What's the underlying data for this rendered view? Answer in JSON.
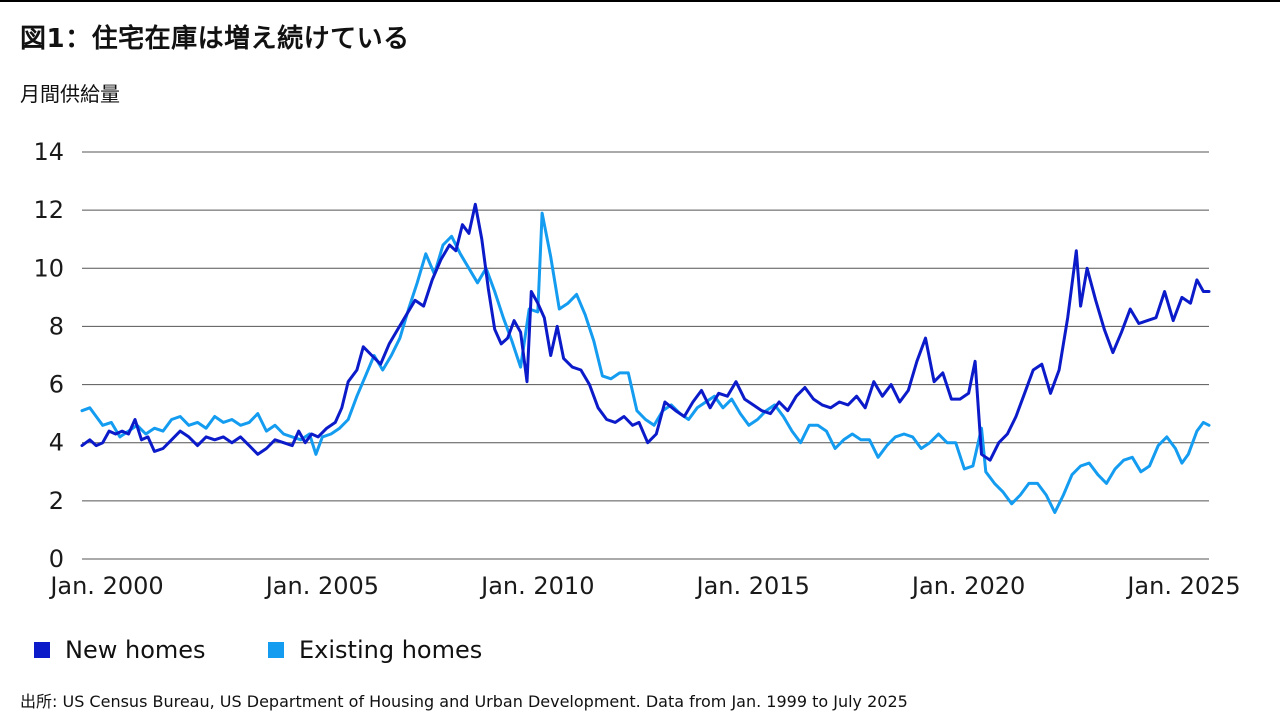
{
  "title": "図1：住宅在庫は増え続けている",
  "source": "出所: US Census Bureau, US Department of Housing and Urban Development. Data from Jan. 1999 to July 2025",
  "colors": {
    "new_homes": "#0c1bc9",
    "existing_homes": "#149cf0",
    "grid": "#555555"
  },
  "chart_data": {
    "type": "line",
    "title": "図1：住宅在庫は増え続けている",
    "xlabel": "",
    "ylabel": "月間供給量",
    "ylim": [
      0,
      14
    ],
    "xlim": [
      1999.42,
      2025.58
    ],
    "y_ticks": [
      0,
      2,
      4,
      6,
      8,
      10,
      12,
      14
    ],
    "x_ticks": [
      {
        "label": "Jan. 2000",
        "value": 2000
      },
      {
        "label": "Jan. 2005",
        "value": 2005
      },
      {
        "label": "Jan. 2010",
        "value": 2010
      },
      {
        "label": "Jan. 2015",
        "value": 2015
      },
      {
        "label": "Jan. 2020",
        "value": 2020
      },
      {
        "label": "Jan. 2025",
        "value": 2025
      }
    ],
    "grid": true,
    "legend_position": "bottom-left",
    "series": [
      {
        "name": "New homes",
        "color": "#0c1bc9",
        "points": [
          [
            1999.42,
            3.9
          ],
          [
            1999.6,
            4.1
          ],
          [
            1999.75,
            3.9
          ],
          [
            1999.9,
            4.0
          ],
          [
            2000.05,
            4.4
          ],
          [
            2000.2,
            4.3
          ],
          [
            2000.35,
            4.4
          ],
          [
            2000.5,
            4.3
          ],
          [
            2000.65,
            4.8
          ],
          [
            2000.8,
            4.1
          ],
          [
            2000.95,
            4.2
          ],
          [
            2001.1,
            3.7
          ],
          [
            2001.3,
            3.8
          ],
          [
            2001.5,
            4.1
          ],
          [
            2001.7,
            4.4
          ],
          [
            2001.9,
            4.2
          ],
          [
            2002.1,
            3.9
          ],
          [
            2002.3,
            4.2
          ],
          [
            2002.5,
            4.1
          ],
          [
            2002.7,
            4.2
          ],
          [
            2002.9,
            4.0
          ],
          [
            2003.1,
            4.2
          ],
          [
            2003.3,
            3.9
          ],
          [
            2003.5,
            3.6
          ],
          [
            2003.7,
            3.8
          ],
          [
            2003.9,
            4.1
          ],
          [
            2004.1,
            4.0
          ],
          [
            2004.3,
            3.9
          ],
          [
            2004.45,
            4.4
          ],
          [
            2004.6,
            4.0
          ],
          [
            2004.75,
            4.3
          ],
          [
            2004.9,
            4.2
          ],
          [
            2005.1,
            4.5
          ],
          [
            2005.3,
            4.7
          ],
          [
            2005.45,
            5.2
          ],
          [
            2005.6,
            6.1
          ],
          [
            2005.8,
            6.5
          ],
          [
            2005.95,
            7.3
          ],
          [
            2006.15,
            7.0
          ],
          [
            2006.35,
            6.7
          ],
          [
            2006.55,
            7.4
          ],
          [
            2006.75,
            7.9
          ],
          [
            2006.95,
            8.4
          ],
          [
            2007.15,
            8.9
          ],
          [
            2007.35,
            8.7
          ],
          [
            2007.55,
            9.6
          ],
          [
            2007.75,
            10.3
          ],
          [
            2007.95,
            10.8
          ],
          [
            2008.1,
            10.6
          ],
          [
            2008.25,
            11.5
          ],
          [
            2008.4,
            11.2
          ],
          [
            2008.55,
            12.2
          ],
          [
            2008.7,
            11.0
          ],
          [
            2008.85,
            9.3
          ],
          [
            2009.0,
            7.9
          ],
          [
            2009.15,
            7.4
          ],
          [
            2009.3,
            7.6
          ],
          [
            2009.45,
            8.2
          ],
          [
            2009.6,
            7.8
          ],
          [
            2009.75,
            6.1
          ],
          [
            2009.85,
            9.2
          ],
          [
            2010.0,
            8.8
          ],
          [
            2010.15,
            8.3
          ],
          [
            2010.3,
            7.0
          ],
          [
            2010.45,
            8.0
          ],
          [
            2010.6,
            6.9
          ],
          [
            2010.8,
            6.6
          ],
          [
            2011.0,
            6.5
          ],
          [
            2011.2,
            6.0
          ],
          [
            2011.4,
            5.2
          ],
          [
            2011.6,
            4.8
          ],
          [
            2011.8,
            4.7
          ],
          [
            2012.0,
            4.9
          ],
          [
            2012.2,
            4.6
          ],
          [
            2012.35,
            4.7
          ],
          [
            2012.55,
            4.0
          ],
          [
            2012.75,
            4.3
          ],
          [
            2012.95,
            5.4
          ],
          [
            2013.2,
            5.1
          ],
          [
            2013.4,
            4.9
          ],
          [
            2013.6,
            5.4
          ],
          [
            2013.8,
            5.8
          ],
          [
            2014.0,
            5.2
          ],
          [
            2014.2,
            5.7
          ],
          [
            2014.4,
            5.6
          ],
          [
            2014.6,
            6.1
          ],
          [
            2014.8,
            5.5
          ],
          [
            2015.0,
            5.3
          ],
          [
            2015.2,
            5.1
          ],
          [
            2015.4,
            5.0
          ],
          [
            2015.6,
            5.4
          ],
          [
            2015.8,
            5.1
          ],
          [
            2016.0,
            5.6
          ],
          [
            2016.2,
            5.9
          ],
          [
            2016.4,
            5.5
          ],
          [
            2016.6,
            5.3
          ],
          [
            2016.8,
            5.2
          ],
          [
            2017.0,
            5.4
          ],
          [
            2017.2,
            5.3
          ],
          [
            2017.4,
            5.6
          ],
          [
            2017.6,
            5.2
          ],
          [
            2017.8,
            6.1
          ],
          [
            2018.0,
            5.6
          ],
          [
            2018.2,
            6.0
          ],
          [
            2018.4,
            5.4
          ],
          [
            2018.6,
            5.8
          ],
          [
            2018.8,
            6.8
          ],
          [
            2019.0,
            7.6
          ],
          [
            2019.2,
            6.1
          ],
          [
            2019.4,
            6.4
          ],
          [
            2019.6,
            5.5
          ],
          [
            2019.8,
            5.5
          ],
          [
            2020.0,
            5.7
          ],
          [
            2020.15,
            6.8
          ],
          [
            2020.3,
            3.6
          ],
          [
            2020.5,
            3.4
          ],
          [
            2020.7,
            4.0
          ],
          [
            2020.9,
            4.3
          ],
          [
            2021.1,
            4.9
          ],
          [
            2021.3,
            5.7
          ],
          [
            2021.5,
            6.5
          ],
          [
            2021.7,
            6.7
          ],
          [
            2021.9,
            5.7
          ],
          [
            2022.1,
            6.5
          ],
          [
            2022.3,
            8.3
          ],
          [
            2022.5,
            10.6
          ],
          [
            2022.6,
            8.7
          ],
          [
            2022.75,
            10.0
          ],
          [
            2022.95,
            8.9
          ],
          [
            2023.15,
            7.9
          ],
          [
            2023.35,
            7.1
          ],
          [
            2023.55,
            7.8
          ],
          [
            2023.75,
            8.6
          ],
          [
            2023.95,
            8.1
          ],
          [
            2024.15,
            8.2
          ],
          [
            2024.35,
            8.3
          ],
          [
            2024.55,
            9.2
          ],
          [
            2024.75,
            8.2
          ],
          [
            2024.95,
            9.0
          ],
          [
            2025.15,
            8.8
          ],
          [
            2025.3,
            9.6
          ],
          [
            2025.45,
            9.2
          ],
          [
            2025.58,
            9.2
          ]
        ]
      },
      {
        "name": "Existing homes",
        "color": "#149cf0",
        "points": [
          [
            1999.42,
            5.1
          ],
          [
            1999.6,
            5.2
          ],
          [
            1999.75,
            4.9
          ],
          [
            1999.9,
            4.6
          ],
          [
            2000.1,
            4.7
          ],
          [
            2000.3,
            4.2
          ],
          [
            2000.5,
            4.4
          ],
          [
            2000.7,
            4.6
          ],
          [
            2000.9,
            4.3
          ],
          [
            2001.1,
            4.5
          ],
          [
            2001.3,
            4.4
          ],
          [
            2001.5,
            4.8
          ],
          [
            2001.7,
            4.9
          ],
          [
            2001.9,
            4.6
          ],
          [
            2002.1,
            4.7
          ],
          [
            2002.3,
            4.5
          ],
          [
            2002.5,
            4.9
          ],
          [
            2002.7,
            4.7
          ],
          [
            2002.9,
            4.8
          ],
          [
            2003.1,
            4.6
          ],
          [
            2003.3,
            4.7
          ],
          [
            2003.5,
            5.0
          ],
          [
            2003.7,
            4.4
          ],
          [
            2003.9,
            4.6
          ],
          [
            2004.1,
            4.3
          ],
          [
            2004.3,
            4.2
          ],
          [
            2004.5,
            4.1
          ],
          [
            2004.7,
            4.3
          ],
          [
            2004.85,
            3.6
          ],
          [
            2005.0,
            4.2
          ],
          [
            2005.2,
            4.3
          ],
          [
            2005.4,
            4.5
          ],
          [
            2005.6,
            4.8
          ],
          [
            2005.8,
            5.6
          ],
          [
            2006.0,
            6.3
          ],
          [
            2006.2,
            7.0
          ],
          [
            2006.4,
            6.5
          ],
          [
            2006.6,
            7.0
          ],
          [
            2006.8,
            7.6
          ],
          [
            2007.0,
            8.6
          ],
          [
            2007.2,
            9.5
          ],
          [
            2007.4,
            10.5
          ],
          [
            2007.6,
            9.8
          ],
          [
            2007.8,
            10.8
          ],
          [
            2008.0,
            11.1
          ],
          [
            2008.2,
            10.5
          ],
          [
            2008.4,
            10.0
          ],
          [
            2008.6,
            9.5
          ],
          [
            2008.8,
            10.0
          ],
          [
            2009.0,
            9.2
          ],
          [
            2009.2,
            8.3
          ],
          [
            2009.4,
            7.5
          ],
          [
            2009.6,
            6.6
          ],
          [
            2009.8,
            8.6
          ],
          [
            2010.0,
            8.5
          ],
          [
            2010.1,
            11.9
          ],
          [
            2010.3,
            10.4
          ],
          [
            2010.5,
            8.6
          ],
          [
            2010.7,
            8.8
          ],
          [
            2010.9,
            9.1
          ],
          [
            2011.1,
            8.4
          ],
          [
            2011.3,
            7.5
          ],
          [
            2011.5,
            6.3
          ],
          [
            2011.7,
            6.2
          ],
          [
            2011.9,
            6.4
          ],
          [
            2012.1,
            6.4
          ],
          [
            2012.3,
            5.1
          ],
          [
            2012.5,
            4.8
          ],
          [
            2012.7,
            4.6
          ],
          [
            2012.9,
            5.1
          ],
          [
            2013.1,
            5.3
          ],
          [
            2013.3,
            5.0
          ],
          [
            2013.5,
            4.8
          ],
          [
            2013.7,
            5.2
          ],
          [
            2013.9,
            5.4
          ],
          [
            2014.1,
            5.6
          ],
          [
            2014.3,
            5.2
          ],
          [
            2014.5,
            5.5
          ],
          [
            2014.7,
            5.0
          ],
          [
            2014.9,
            4.6
          ],
          [
            2015.1,
            4.8
          ],
          [
            2015.3,
            5.1
          ],
          [
            2015.5,
            5.3
          ],
          [
            2015.7,
            4.9
          ],
          [
            2015.9,
            4.4
          ],
          [
            2016.1,
            4.0
          ],
          [
            2016.3,
            4.6
          ],
          [
            2016.5,
            4.6
          ],
          [
            2016.7,
            4.4
          ],
          [
            2016.9,
            3.8
          ],
          [
            2017.1,
            4.1
          ],
          [
            2017.3,
            4.3
          ],
          [
            2017.5,
            4.1
          ],
          [
            2017.7,
            4.1
          ],
          [
            2017.9,
            3.5
          ],
          [
            2018.1,
            3.9
          ],
          [
            2018.3,
            4.2
          ],
          [
            2018.5,
            4.3
          ],
          [
            2018.7,
            4.2
          ],
          [
            2018.9,
            3.8
          ],
          [
            2019.1,
            4.0
          ],
          [
            2019.3,
            4.3
          ],
          [
            2019.5,
            4.0
          ],
          [
            2019.7,
            4.0
          ],
          [
            2019.9,
            3.1
          ],
          [
            2020.1,
            3.2
          ],
          [
            2020.3,
            4.5
          ],
          [
            2020.4,
            3.0
          ],
          [
            2020.6,
            2.6
          ],
          [
            2020.8,
            2.3
          ],
          [
            2021.0,
            1.9
          ],
          [
            2021.2,
            2.2
          ],
          [
            2021.4,
            2.6
          ],
          [
            2021.6,
            2.6
          ],
          [
            2021.8,
            2.2
          ],
          [
            2022.0,
            1.6
          ],
          [
            2022.2,
            2.2
          ],
          [
            2022.4,
            2.9
          ],
          [
            2022.6,
            3.2
          ],
          [
            2022.8,
            3.3
          ],
          [
            2023.0,
            2.9
          ],
          [
            2023.2,
            2.6
          ],
          [
            2023.4,
            3.1
          ],
          [
            2023.6,
            3.4
          ],
          [
            2023.8,
            3.5
          ],
          [
            2024.0,
            3.0
          ],
          [
            2024.2,
            3.2
          ],
          [
            2024.4,
            3.9
          ],
          [
            2024.6,
            4.2
          ],
          [
            2024.8,
            3.8
          ],
          [
            2024.95,
            3.3
          ],
          [
            2025.1,
            3.6
          ],
          [
            2025.3,
            4.4
          ],
          [
            2025.45,
            4.7
          ],
          [
            2025.58,
            4.6
          ]
        ]
      }
    ]
  }
}
